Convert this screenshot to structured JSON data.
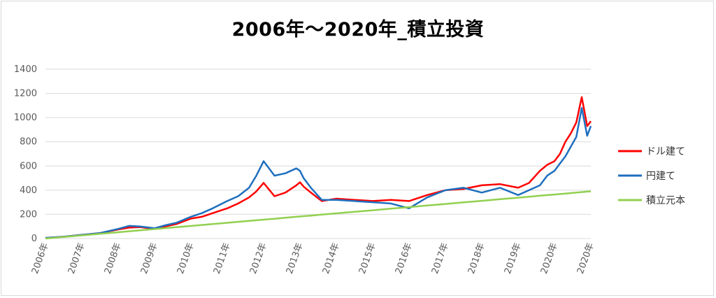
{
  "chart_data": {
    "type": "line",
    "title": "2006年～2020年_積立投資",
    "xlabel": "",
    "ylabel": "",
    "ylim": [
      0,
      1400
    ],
    "yticks": [
      "0",
      "200",
      "400",
      "600",
      "800",
      "1000",
      "1200",
      "1400"
    ],
    "xticks": [
      "2006年",
      "2007年",
      "2008年",
      "2009年",
      "2010年",
      "2011年",
      "2012年",
      "2013年",
      "2014年",
      "2015年",
      "2016年",
      "2017年",
      "2018年",
      "2019年",
      "2020年",
      "2020年"
    ],
    "grid": "horizontal",
    "legend_position": "right",
    "x": [
      2006.0,
      2006.5,
      2007.0,
      2007.5,
      2008.0,
      2008.3,
      2008.6,
      2009.0,
      2009.3,
      2009.6,
      2010.0,
      2010.3,
      2010.6,
      2011.0,
      2011.3,
      2011.6,
      2011.8,
      2012.0,
      2012.3,
      2012.6,
      2012.9,
      2013.0,
      2013.1,
      2013.3,
      2013.6,
      2014.0,
      2014.5,
      2015.0,
      2015.5,
      2016.0,
      2016.5,
      2017.0,
      2017.5,
      2018.0,
      2018.5,
      2019.0,
      2019.3,
      2019.6,
      2019.8,
      2020.0,
      2020.15,
      2020.3,
      2020.45,
      2020.6,
      2020.75,
      2020.9,
      2021.0
    ],
    "series": [
      {
        "name": "ドル建て",
        "color": "#ff0000",
        "values": [
          5,
          15,
          30,
          45,
          75,
          90,
          95,
          80,
          100,
          120,
          165,
          180,
          210,
          250,
          290,
          340,
          390,
          460,
          350,
          380,
          440,
          465,
          430,
          380,
          310,
          330,
          320,
          310,
          320,
          310,
          360,
          400,
          410,
          440,
          450,
          420,
          460,
          560,
          610,
          640,
          700,
          800,
          870,
          960,
          1170,
          930,
          970
        ]
      },
      {
        "name": "円建て",
        "color": "#1f6fbf",
        "values": [
          5,
          15,
          30,
          45,
          80,
          105,
          100,
          85,
          110,
          130,
          180,
          210,
          250,
          310,
          350,
          420,
          520,
          640,
          520,
          540,
          580,
          560,
          500,
          420,
          320,
          320,
          310,
          300,
          290,
          250,
          340,
          400,
          420,
          380,
          420,
          360,
          400,
          440,
          520,
          560,
          620,
          680,
          760,
          840,
          1080,
          850,
          930
        ]
      },
      {
        "name": "積立元本",
        "color": "#92d050",
        "values": [
          0,
          13,
          26,
          39,
          52,
          60,
          68,
          78,
          86,
          94,
          104,
          112,
          120,
          130,
          138,
          146,
          151,
          156,
          164,
          172,
          180,
          182,
          185,
          190,
          198,
          208,
          221,
          234,
          247,
          260,
          273,
          286,
          299,
          312,
          325,
          338,
          346,
          354,
          359,
          364,
          368,
          372,
          376,
          380,
          384,
          388,
          390
        ]
      }
    ]
  }
}
